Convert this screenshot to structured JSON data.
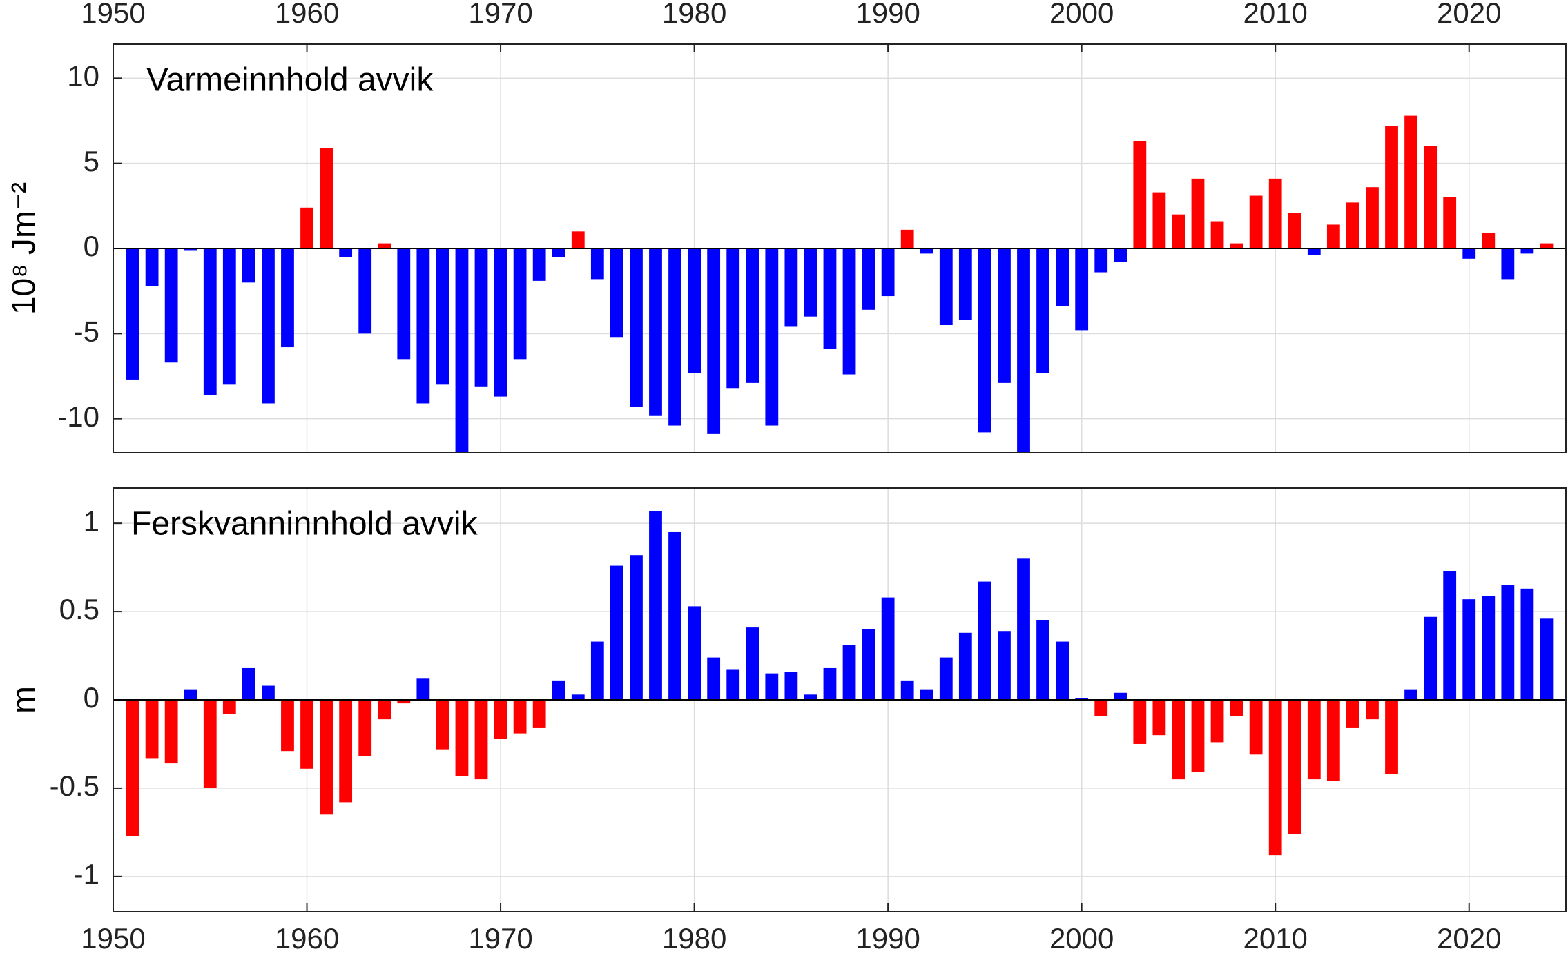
{
  "chart_data": [
    {
      "type": "bar",
      "annotation": "Varmeinnhold avvik",
      "ylabel": "10⁸ Jm⁻²",
      "x": [
        1951,
        1952,
        1953,
        1954,
        1955,
        1956,
        1957,
        1958,
        1959,
        1960,
        1961,
        1962,
        1963,
        1964,
        1965,
        1966,
        1967,
        1968,
        1969,
        1970,
        1971,
        1972,
        1973,
        1974,
        1975,
        1976,
        1977,
        1978,
        1979,
        1980,
        1981,
        1982,
        1983,
        1984,
        1985,
        1986,
        1987,
        1988,
        1989,
        1990,
        1991,
        1992,
        1993,
        1994,
        1995,
        1996,
        1997,
        1998,
        1999,
        2000,
        2001,
        2002,
        2003,
        2004,
        2005,
        2006,
        2007,
        2008,
        2009,
        2010,
        2011,
        2012,
        2013,
        2014,
        2015,
        2016,
        2017,
        2018,
        2019,
        2020,
        2021,
        2022,
        2023,
        2024
      ],
      "values": [
        -7.7,
        -2.2,
        -6.7,
        -0.1,
        -8.6,
        -8.0,
        -2.0,
        -9.1,
        -5.8,
        2.4,
        5.9,
        -0.5,
        -5.0,
        0.3,
        -6.5,
        -9.1,
        -8.0,
        -12.2,
        -8.1,
        -8.7,
        -6.5,
        -1.9,
        -0.5,
        1.0,
        -1.8,
        -5.2,
        -9.3,
        -9.8,
        -10.4,
        -7.3,
        -10.9,
        -8.2,
        -7.9,
        -10.4,
        -4.6,
        -4.0,
        -5.9,
        -7.4,
        -3.6,
        -2.8,
        1.1,
        -0.3,
        -4.5,
        -4.2,
        -10.8,
        -7.9,
        -12.2,
        -7.3,
        -3.4,
        -4.8,
        -1.4,
        -0.8,
        6.3,
        3.3,
        2.0,
        4.1,
        1.6,
        0.3,
        3.1,
        4.1,
        2.1,
        -0.4,
        1.4,
        2.7,
        3.6,
        7.2,
        7.8,
        6.0,
        3.0,
        -0.6,
        0.9,
        -1.8,
        -0.3,
        0.3
      ],
      "positive_color": "#ff0000",
      "negative_color": "#0000ff",
      "xlim": [
        1950,
        2025
      ],
      "xticks": [
        1950,
        1960,
        1970,
        1980,
        1990,
        2000,
        2010,
        2020
      ],
      "xaxis_location": "top",
      "ylim": [
        -12,
        12
      ],
      "yticks": [
        -10,
        -5,
        0,
        5,
        10
      ],
      "grid": true
    },
    {
      "type": "bar",
      "annotation": "Ferskvanninnhold avvik",
      "ylabel": "m",
      "x": [
        1951,
        1952,
        1953,
        1954,
        1955,
        1956,
        1957,
        1958,
        1959,
        1960,
        1961,
        1962,
        1963,
        1964,
        1965,
        1966,
        1967,
        1968,
        1969,
        1970,
        1971,
        1972,
        1973,
        1974,
        1975,
        1976,
        1977,
        1978,
        1979,
        1980,
        1981,
        1982,
        1983,
        1984,
        1985,
        1986,
        1987,
        1988,
        1989,
        1990,
        1991,
        1992,
        1993,
        1994,
        1995,
        1996,
        1997,
        1998,
        1999,
        2000,
        2001,
        2002,
        2003,
        2004,
        2005,
        2006,
        2007,
        2008,
        2009,
        2010,
        2011,
        2012,
        2013,
        2014,
        2015,
        2016,
        2017,
        2018,
        2019,
        2020,
        2021,
        2022,
        2023,
        2024
      ],
      "values": [
        -0.77,
        -0.33,
        -0.36,
        0.06,
        -0.5,
        -0.08,
        0.18,
        0.08,
        -0.29,
        -0.39,
        -0.65,
        -0.58,
        -0.32,
        -0.11,
        -0.02,
        0.12,
        -0.28,
        -0.43,
        -0.45,
        -0.22,
        -0.19,
        -0.16,
        0.11,
        0.03,
        0.33,
        0.76,
        0.82,
        1.07,
        0.95,
        0.53,
        0.24,
        0.17,
        0.41,
        0.15,
        0.16,
        0.03,
        0.18,
        0.31,
        0.4,
        0.58,
        0.11,
        0.06,
        0.24,
        0.38,
        0.67,
        0.39,
        0.8,
        0.45,
        0.33,
        0.01,
        -0.09,
        0.04,
        -0.25,
        -0.2,
        -0.45,
        -0.41,
        -0.24,
        -0.09,
        -0.31,
        -0.88,
        -0.76,
        -0.45,
        -0.46,
        -0.16,
        -0.11,
        -0.42,
        0.06,
        0.47,
        0.73,
        0.57,
        0.59,
        0.65,
        0.63,
        0.46
      ],
      "positive_color": "#0000ff",
      "negative_color": "#ff0000",
      "xlim": [
        1950,
        2025
      ],
      "xticks": [
        1950,
        1960,
        1970,
        1980,
        1990,
        2000,
        2010,
        2020
      ],
      "xaxis_location": "bottom",
      "ylim": [
        -1.2,
        1.2
      ],
      "yticks": [
        -1,
        -0.5,
        0,
        0.5,
        1
      ],
      "grid": true
    }
  ]
}
